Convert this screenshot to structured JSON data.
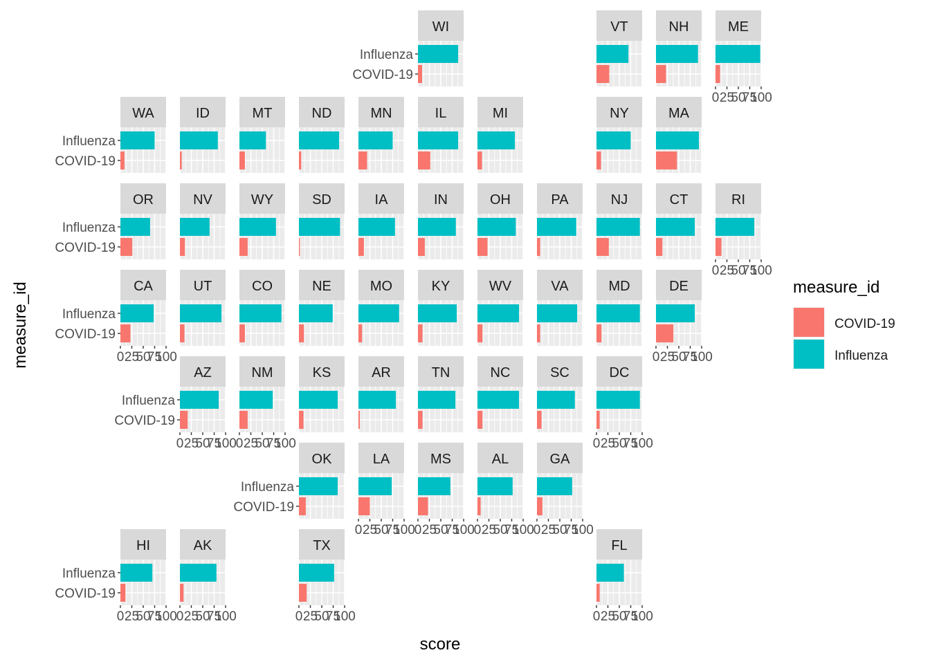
{
  "chart_data": {
    "type": "bar",
    "orientation": "horizontal",
    "layout": "geofacet-us-states",
    "xlabel": "score",
    "ylabel": "measure_id",
    "xlim": [
      0,
      100
    ],
    "x_ticks": [
      "0",
      "25",
      "50",
      "75",
      "100"
    ],
    "categories": [
      "COVID-19",
      "Influenza"
    ],
    "legend": {
      "title": "measure_id",
      "position": "right",
      "entries": [
        {
          "label": "COVID-19",
          "color": "#F8766D"
        },
        {
          "label": "Influenza",
          "color": "#00BFC4"
        }
      ]
    },
    "grid": true,
    "facets": [
      {
        "state": "WI",
        "col": 5,
        "row": 0,
        "covid": 9,
        "influenza": 88
      },
      {
        "state": "VT",
        "col": 8,
        "row": 0,
        "covid": 28,
        "influenza": 70
      },
      {
        "state": "NH",
        "col": 9,
        "row": 0,
        "covid": 22,
        "influenza": 92
      },
      {
        "state": "ME",
        "col": 10,
        "row": 0,
        "covid": 10,
        "influenza": 98
      },
      {
        "state": "WA",
        "col": 0,
        "row": 1,
        "covid": 9,
        "influenza": 75
      },
      {
        "state": "ID",
        "col": 1,
        "row": 1,
        "covid": 4,
        "influenza": 83
      },
      {
        "state": "MT",
        "col": 2,
        "row": 1,
        "covid": 12,
        "influenza": 58
      },
      {
        "state": "ND",
        "col": 3,
        "row": 1,
        "covid": 5,
        "influenza": 88
      },
      {
        "state": "MN",
        "col": 4,
        "row": 1,
        "covid": 19,
        "influenza": 75
      },
      {
        "state": "IL",
        "col": 5,
        "row": 1,
        "covid": 27,
        "influenza": 88
      },
      {
        "state": "MI",
        "col": 6,
        "row": 1,
        "covid": 10,
        "influenza": 82
      },
      {
        "state": "NY",
        "col": 8,
        "row": 1,
        "covid": 10,
        "influenza": 75
      },
      {
        "state": "MA",
        "col": 9,
        "row": 1,
        "covid": 46,
        "influenza": 94
      },
      {
        "state": "OR",
        "col": 0,
        "row": 2,
        "covid": 26,
        "influenza": 65
      },
      {
        "state": "NV",
        "col": 1,
        "row": 2,
        "covid": 11,
        "influenza": 65
      },
      {
        "state": "WY",
        "col": 2,
        "row": 2,
        "covid": 18,
        "influenza": 80
      },
      {
        "state": "SD",
        "col": 3,
        "row": 2,
        "covid": 2,
        "influenza": 90
      },
      {
        "state": "IA",
        "col": 4,
        "row": 2,
        "covid": 12,
        "influenza": 80
      },
      {
        "state": "IN",
        "col": 5,
        "row": 2,
        "covid": 15,
        "influenza": 83
      },
      {
        "state": "OH",
        "col": 6,
        "row": 2,
        "covid": 22,
        "influenza": 84
      },
      {
        "state": "PA",
        "col": 7,
        "row": 2,
        "covid": 7,
        "influenza": 86
      },
      {
        "state": "NJ",
        "col": 8,
        "row": 2,
        "covid": 27,
        "influenza": 95
      },
      {
        "state": "CT",
        "col": 9,
        "row": 2,
        "covid": 14,
        "influenza": 85
      },
      {
        "state": "RI",
        "col": 10,
        "row": 2,
        "covid": 13,
        "influenza": 85
      },
      {
        "state": "CA",
        "col": 0,
        "row": 3,
        "covid": 22,
        "influenza": 73
      },
      {
        "state": "UT",
        "col": 1,
        "row": 3,
        "covid": 10,
        "influenza": 91
      },
      {
        "state": "CO",
        "col": 2,
        "row": 3,
        "covid": 12,
        "influenza": 92
      },
      {
        "state": "NE",
        "col": 3,
        "row": 3,
        "covid": 11,
        "influenza": 74
      },
      {
        "state": "MO",
        "col": 4,
        "row": 3,
        "covid": 8,
        "influenza": 89
      },
      {
        "state": "KY",
        "col": 5,
        "row": 3,
        "covid": 10,
        "influenza": 85
      },
      {
        "state": "WV",
        "col": 6,
        "row": 3,
        "covid": 11,
        "influenza": 91
      },
      {
        "state": "VA",
        "col": 7,
        "row": 3,
        "covid": 7,
        "influenza": 88
      },
      {
        "state": "MD",
        "col": 8,
        "row": 3,
        "covid": 11,
        "influenza": 95
      },
      {
        "state": "DE",
        "col": 9,
        "row": 3,
        "covid": 38,
        "influenza": 85
      },
      {
        "state": "AZ",
        "col": 1,
        "row": 4,
        "covid": 17,
        "influenza": 85
      },
      {
        "state": "NM",
        "col": 2,
        "row": 4,
        "covid": 18,
        "influenza": 73
      },
      {
        "state": "KS",
        "col": 3,
        "row": 4,
        "covid": 10,
        "influenza": 85
      },
      {
        "state": "AR",
        "col": 4,
        "row": 4,
        "covid": 3,
        "influenza": 82
      },
      {
        "state": "TN",
        "col": 5,
        "row": 4,
        "covid": 10,
        "influenza": 82
      },
      {
        "state": "NC",
        "col": 6,
        "row": 4,
        "covid": 11,
        "influenza": 91
      },
      {
        "state": "SC",
        "col": 7,
        "row": 4,
        "covid": 10,
        "influenza": 83
      },
      {
        "state": "DC",
        "col": 8,
        "row": 4,
        "covid": 7,
        "influenza": 95
      },
      {
        "state": "OK",
        "col": 3,
        "row": 5,
        "covid": 15,
        "influenza": 85
      },
      {
        "state": "LA",
        "col": 4,
        "row": 5,
        "covid": 25,
        "influenza": 73
      },
      {
        "state": "MS",
        "col": 5,
        "row": 5,
        "covid": 22,
        "influenza": 71
      },
      {
        "state": "AL",
        "col": 6,
        "row": 5,
        "covid": 7,
        "influenza": 77
      },
      {
        "state": "GA",
        "col": 7,
        "row": 5,
        "covid": 12,
        "influenza": 77
      },
      {
        "state": "HI",
        "col": 0,
        "row": 6,
        "covid": 11,
        "influenza": 70
      },
      {
        "state": "AK",
        "col": 1,
        "row": 6,
        "covid": 8,
        "influenza": 80
      },
      {
        "state": "TX",
        "col": 3,
        "row": 6,
        "covid": 17,
        "influenza": 77
      },
      {
        "state": "FL",
        "col": 8,
        "row": 6,
        "covid": 7,
        "influenza": 60
      }
    ]
  }
}
